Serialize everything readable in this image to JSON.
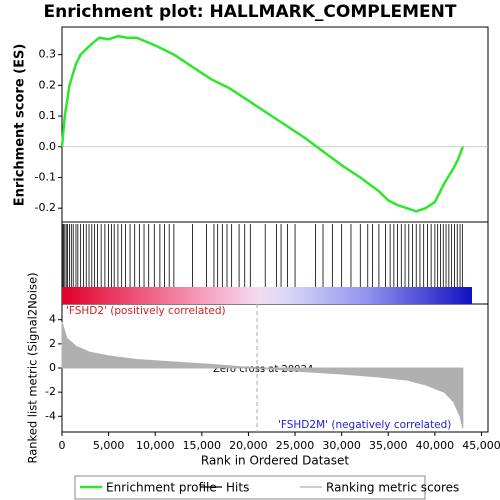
{
  "chart_data": {
    "type": "gsea",
    "title": "Enrichment plot: HALLMARK_COMPLEMENT",
    "xlabel": "Rank in Ordered Dataset",
    "xlim": [
      0,
      45700
    ],
    "xticks": [
      0,
      {
        "value": 5000,
        "label": "5,000"
      },
      {
        "value": 10000,
        "label": "10,000"
      },
      {
        "value": 15000,
        "label": "15,000"
      },
      {
        "value": 20000,
        "label": "20,000"
      },
      {
        "value": 25000,
        "label": "25,000"
      },
      {
        "value": 30000,
        "label": "30,000"
      },
      {
        "value": 35000,
        "label": "35,000"
      },
      {
        "value": 40000,
        "label": "40,000"
      },
      {
        "value": 45000,
        "label": "45,000"
      }
    ],
    "es": {
      "ylabel": "Enrichment score (ES)",
      "ylim": [
        -0.245,
        0.39
      ],
      "yticks": [
        -0.2,
        -0.1,
        {
          "value": 0,
          "label": "0.0"
        },
        0.1,
        0.2,
        0.3
      ],
      "color": "#2ee62e",
      "x": [
        0,
        300,
        800,
        1500,
        2000,
        3000,
        4000,
        5000,
        6000,
        7000,
        8000,
        10000,
        12000,
        14000,
        16000,
        18000,
        20000,
        22000,
        24000,
        26000,
        28000,
        30000,
        32000,
        34000,
        35000,
        36000,
        37000,
        38000,
        39000,
        40000,
        41000,
        42000,
        42500,
        43000
      ],
      "values": [
        0,
        0.1,
        0.2,
        0.27,
        0.3,
        0.33,
        0.355,
        0.35,
        0.36,
        0.355,
        0.355,
        0.33,
        0.3,
        0.26,
        0.22,
        0.19,
        0.15,
        0.11,
        0.07,
        0.03,
        -0.015,
        -0.06,
        -0.1,
        -0.145,
        -0.175,
        -0.19,
        -0.2,
        -0.21,
        -0.2,
        -0.18,
        -0.12,
        -0.07,
        -0.04,
        0
      ]
    },
    "hits": [
      50,
      150,
      300,
      450,
      600,
      800,
      1000,
      1200,
      1500,
      1700,
      2000,
      2300,
      2600,
      2900,
      3200,
      3500,
      3800,
      4200,
      4600,
      5000,
      5300,
      5600,
      6000,
      6400,
      6800,
      7300,
      7800,
      8300,
      8800,
      9300,
      9900,
      10500,
      11000,
      11500,
      12000,
      14000,
      15500,
      16300,
      16700,
      17200,
      17700,
      18200,
      19000,
      19600,
      20200,
      21800,
      23000,
      23500,
      24200,
      25000,
      27200,
      28000,
      29000,
      30000,
      31000,
      32000,
      32800,
      33300,
      34000,
      34700,
      35200,
      35600,
      36000,
      36400,
      36800,
      37200,
      37600,
      38000,
      38400,
      38800,
      39200,
      39600,
      40000,
      40300,
      40600,
      40900,
      41200,
      41500,
      41800,
      42100,
      42400,
      42700,
      42950
    ],
    "hits_color": "#000000",
    "metric": {
      "ylabel": "Ranked list metric (Signal2Noise)",
      "ylim": [
        -5.3,
        5.3
      ],
      "yticks": [
        -4,
        -2,
        0,
        2,
        4
      ],
      "color": "#b0b0b0",
      "x": [
        0,
        500,
        1500,
        3000,
        5000,
        8000,
        12000,
        16000,
        20924,
        26000,
        30000,
        34000,
        37000,
        39000,
        41000,
        42000,
        42700,
        43000
      ],
      "values": [
        3.8,
        2.5,
        1.8,
        1.3,
        1.0,
        0.7,
        0.5,
        0.3,
        0,
        -0.3,
        -0.5,
        -0.75,
        -1.0,
        -1.4,
        -2.0,
        -2.8,
        -4,
        -5
      ]
    },
    "pos_label": "'FSHD2' (positively correlated)",
    "neg_label": "'FSHD2M' (negatively correlated)",
    "zero_cross_label": "Zero cross at 20924",
    "zero_cross": 20924,
    "legend": [
      "Enrichment profile",
      "Hits",
      "Ranking metric scores"
    ]
  }
}
